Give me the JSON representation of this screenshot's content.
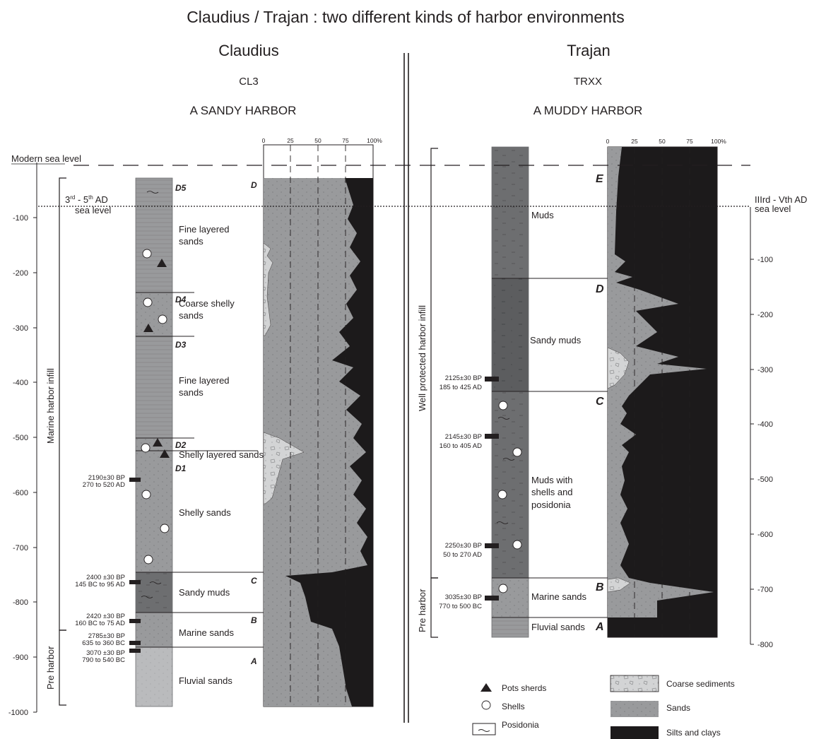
{
  "figure": {
    "title": "Claudius / Trajan : two different kinds of harbor environments",
    "modern_sea_level": "Modern sea level",
    "colors": {
      "sands": "#999a9c",
      "silts_clays": "#1c1a1b",
      "muds": "#6d6e70",
      "sandy_muds": "#58595b",
      "coarse": "#cfd0d1",
      "fluvial": "#b8b9bb",
      "line": "#231f20"
    },
    "claudius": {
      "heading": "Claudius",
      "core": "CL3",
      "subtitle": "A SANDY HARBOR",
      "ancient_sea_level": {
        "main": "3",
        "sup1": "rd",
        "mid": " - 5",
        "sup2": "th",
        "tail": " AD",
        "line2": "sea level"
      },
      "depth_ticks": [
        "-100",
        "-200",
        "-300",
        "-400",
        "-500",
        "-600",
        "-700",
        "-800",
        "-900",
        "-1000"
      ],
      "brackets": {
        "marine": "Marine harbor infill",
        "pre": "Pre harbor"
      },
      "unit_labels": [
        "D5",
        "D4",
        "D3",
        "D2",
        "D1",
        "C",
        "B",
        "A",
        "D"
      ],
      "facies": [
        "Fine layered sands",
        "Coarse shelly sands",
        "Fine layered sands",
        "Shelly layered sands",
        "Shelly sands",
        "Sandy muds",
        "Marine sands",
        "Fluvial sands"
      ],
      "dates": [
        {
          "bp": "2190±30 BP",
          "cal": "270 to 520 AD"
        },
        {
          "bp": "2400 ±30 BP",
          "cal": "145 BC to 95 AD"
        },
        {
          "bp": "2420 ±30 BP",
          "cal": "160 BC to 75 AD"
        },
        {
          "bp": "2785±30 BP",
          "cal": "635 to 360 BC"
        },
        {
          "bp": "3070 ±30 BP",
          "cal": "790 to 540 BC"
        }
      ],
      "pct_ticks": [
        "0",
        "25",
        "50",
        "75",
        "100%"
      ]
    },
    "trajan": {
      "heading": "Trajan",
      "core": "TRXX",
      "subtitle": "A MUDDY HARBOR",
      "ancient_sea_level": {
        "line1": "IIIrd - Vth AD",
        "line2": "sea level"
      },
      "depth_ticks": [
        "-100",
        "-200",
        "-300",
        "-400",
        "-500",
        "-600",
        "-700",
        "-800"
      ],
      "brackets": {
        "protected": "Well protected harbor infill",
        "pre": "Pre harbor"
      },
      "unit_labels": [
        "E",
        "D",
        "C",
        "B",
        "A"
      ],
      "facies": [
        "Muds",
        "Sandy muds",
        "Muds with",
        "shells and",
        "posidonia",
        "Marine sands",
        "Fluvial sands"
      ],
      "dates": [
        {
          "bp": "2125±30 BP",
          "cal": "185 to 425 AD"
        },
        {
          "bp": "2145±30 BP",
          "cal": "160 to 405 AD"
        },
        {
          "bp": "2250±30 BP",
          "cal": "50 to 270 AD"
        },
        {
          "bp": "3035±30 BP",
          "cal": "770 to 500 BC"
        }
      ],
      "pct_ticks": [
        "0",
        "25",
        "50",
        "75",
        "100%"
      ]
    },
    "legend": {
      "pots_sherds": "Pots sherds",
      "shells": "Shells",
      "posidonia": "Posidonia",
      "coarse": "Coarse sediments",
      "sands": "Sands",
      "silts": "Silts and clays"
    }
  }
}
